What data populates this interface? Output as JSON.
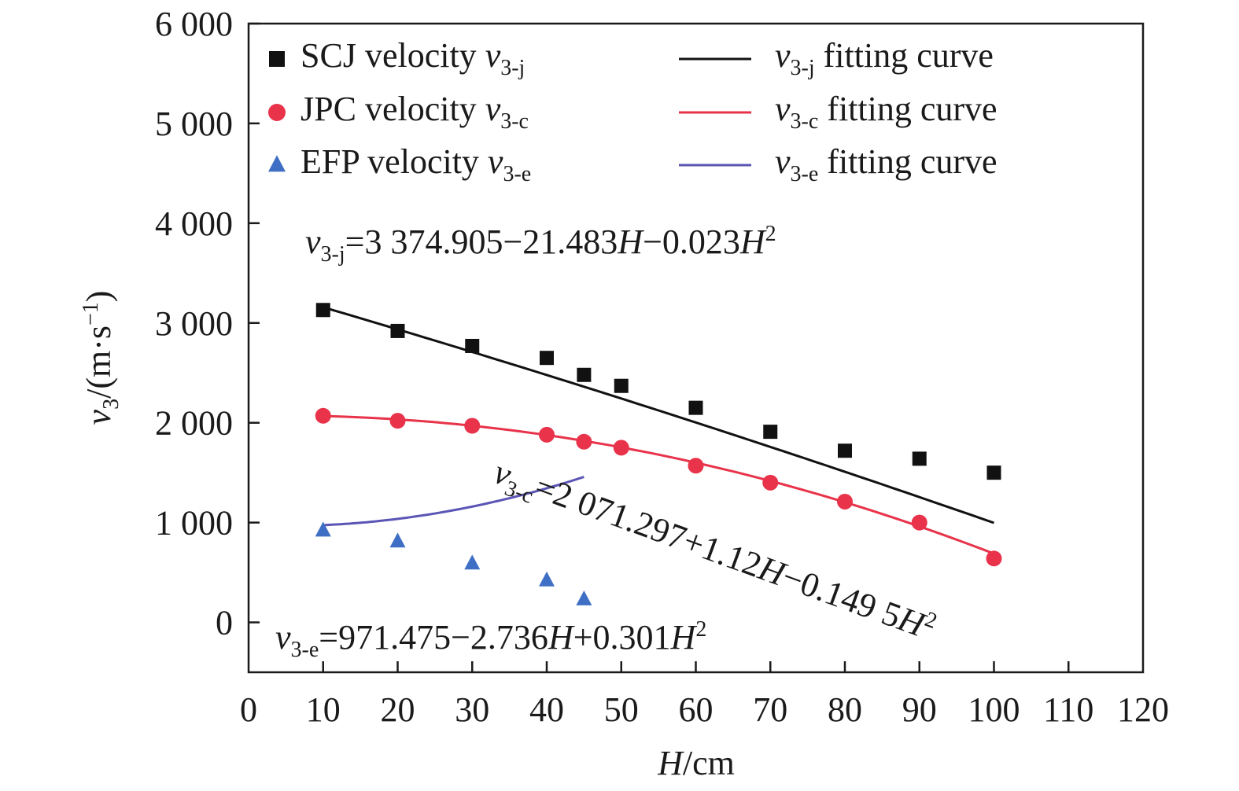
{
  "chart_data": {
    "type": "scatter",
    "xlabel": {
      "var": "H",
      "unit": "/cm"
    },
    "ylabel": {
      "var": "v",
      "sub": "3",
      "unit_prefix": "/(m·s",
      "sup": "−1",
      "unit_suffix": ")"
    },
    "xlim": [
      0,
      120
    ],
    "ylim": [
      -500,
      6000
    ],
    "x_ticks": [
      0,
      10,
      20,
      30,
      40,
      50,
      60,
      70,
      80,
      90,
      100,
      110,
      120
    ],
    "x_tick_labels": [
      "0",
      "10",
      "20",
      "30",
      "40",
      "50",
      "60",
      "70",
      "80",
      "90",
      "100",
      "110",
      "120"
    ],
    "y_ticks": [
      0,
      1000,
      2000,
      3000,
      4000,
      5000,
      6000
    ],
    "y_tick_labels": [
      "0",
      "1 000",
      "2 000",
      "3 000",
      "4 000",
      "5 000",
      "6 000"
    ],
    "grid": false,
    "legend_position": "top",
    "series": [
      {
        "name": "SCJ velocity",
        "var": "v",
        "sub": "3-j",
        "marker": "square",
        "color": "#111111",
        "x": [
          10,
          20,
          30,
          40,
          45,
          50,
          60,
          70,
          80,
          90,
          100
        ],
        "y": [
          3130,
          2920,
          2770,
          2650,
          2480,
          2370,
          2150,
          1910,
          1720,
          1640,
          1500
        ],
        "fit": {
          "legend": "fitting curve",
          "color": "#111111",
          "coeffs": [
            3374.905,
            -21.483,
            -0.023
          ],
          "eq_var": "v",
          "eq_sub": "3-j",
          "eq_parts": [
            "=3 374.905−21.483",
            "H",
            "−0.023",
            "H",
            "2"
          ]
        }
      },
      {
        "name": "JPC velocity",
        "var": "v",
        "sub": "3-c",
        "marker": "circle",
        "color": "#e8334a",
        "x": [
          10,
          20,
          30,
          40,
          45,
          50,
          60,
          70,
          80,
          90,
          100
        ],
        "y": [
          2070,
          2020,
          1970,
          1880,
          1810,
          1750,
          1570,
          1400,
          1210,
          1000,
          640
        ],
        "fit": {
          "legend": "fitting curve",
          "color": "#e8334a",
          "coeffs": [
            2071.297,
            1.12,
            -0.1495
          ],
          "eq_var": "v",
          "eq_sub": "3-c",
          "eq_parts": [
            "=2 071.297+1.12",
            "H",
            "−0.149 5",
            "H",
            "2"
          ]
        }
      },
      {
        "name": "EFP velocity",
        "var": "v",
        "sub": "3-e",
        "marker": "triangle",
        "color": "#3f6fc4",
        "x": [
          10,
          20,
          30,
          40,
          45
        ],
        "y": [
          920,
          810,
          590,
          420,
          230
        ],
        "fit": {
          "legend": "fitting curve",
          "color": "#5b55b5",
          "coeffs": [
            971.475,
            -2.736,
            0.301
          ],
          "eq_var": "v",
          "eq_sub": "3-e",
          "eq_parts": [
            "=971.475−2.736",
            "H",
            "+0.301",
            "H",
            "2"
          ]
        }
      }
    ]
  }
}
